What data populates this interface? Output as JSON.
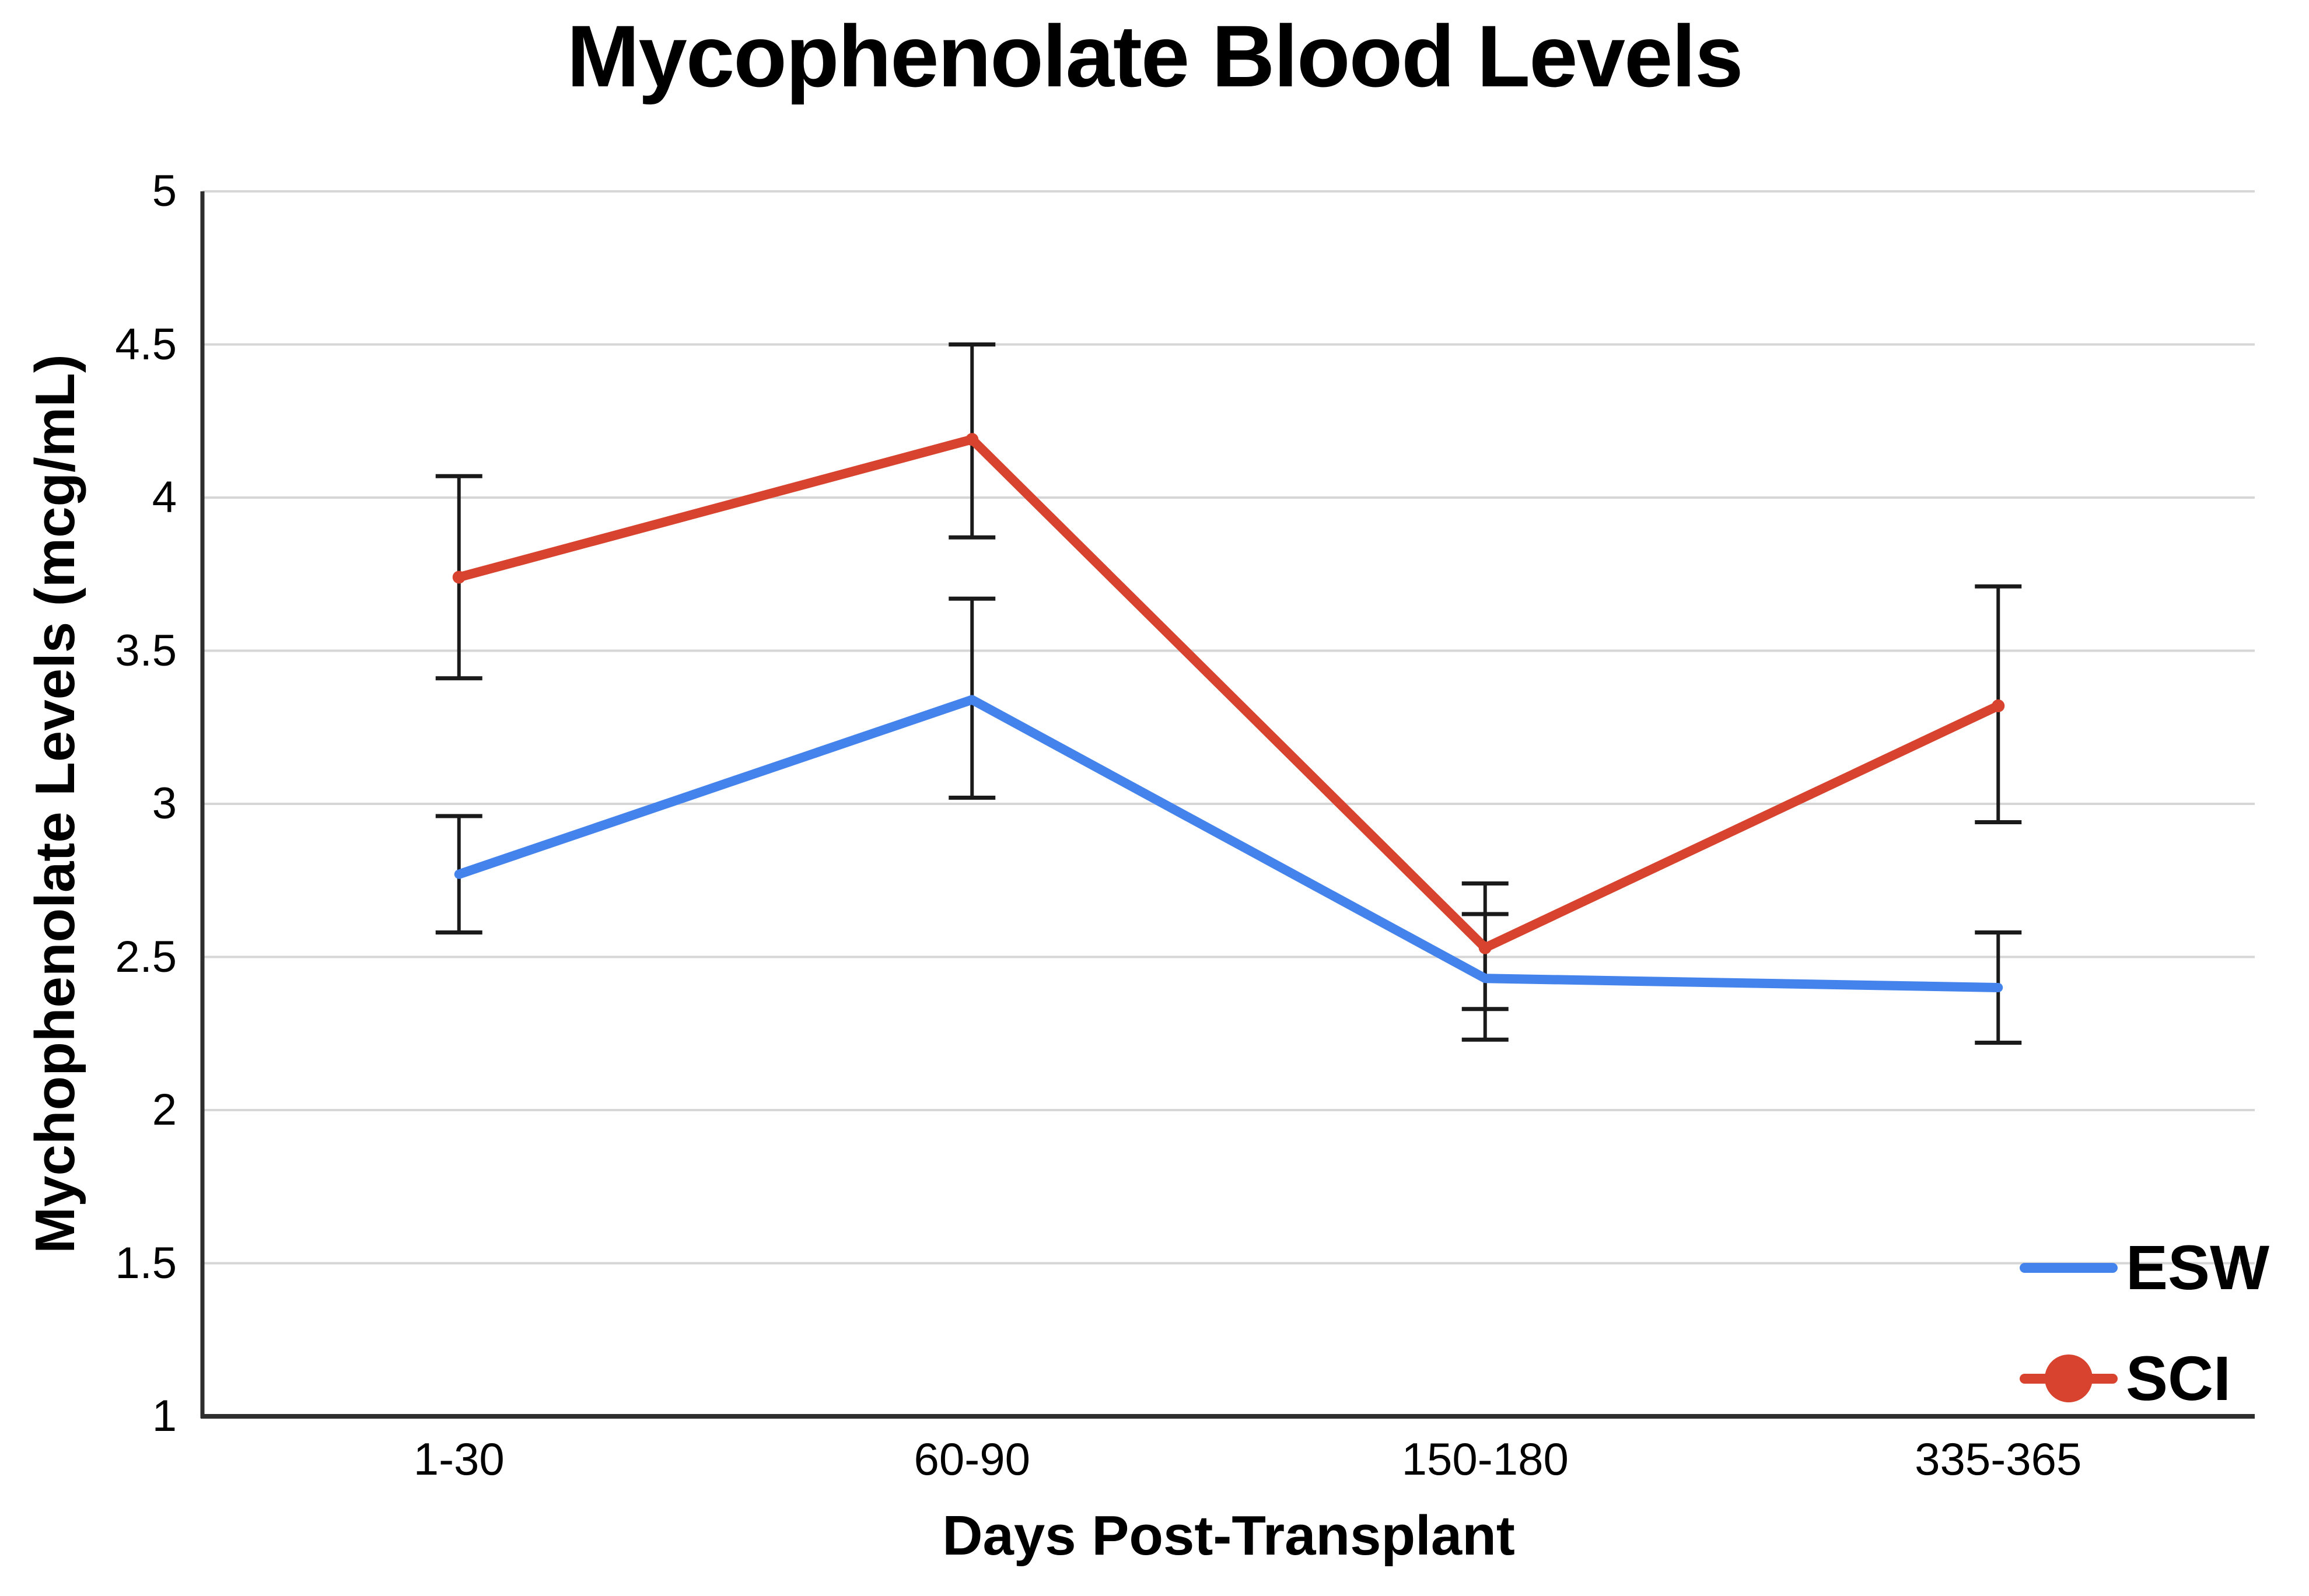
{
  "chart_data": {
    "type": "line",
    "title": "Mycophenolate Blood Levels",
    "xlabel": "Days Post-Transplant",
    "ylabel": "Mychophenolate Levels (mcg/mL)",
    "categories": [
      "1-30",
      "60-90",
      "150-180",
      "335-365"
    ],
    "ylim": [
      1,
      5
    ],
    "ytick_step": 0.5,
    "ytick_labels": [
      "1",
      "1.5",
      "2",
      "2.5",
      "3",
      "3.5",
      "4",
      "4.5",
      "5"
    ],
    "grid": true,
    "legend_position": "inside-bottom-right",
    "series": [
      {
        "name": "ESW",
        "color": "#4583EC",
        "marker": "none",
        "values": [
          2.77,
          3.34,
          2.43,
          2.4
        ],
        "error_low": [
          2.58,
          3.02,
          2.23,
          2.22
        ],
        "error_high": [
          2.96,
          3.67,
          2.64,
          2.58
        ]
      },
      {
        "name": "SCI",
        "color": "#D7432E",
        "marker": "circle",
        "values": [
          3.74,
          4.19,
          2.53,
          3.32
        ],
        "error_low": [
          3.41,
          3.87,
          2.33,
          2.94
        ],
        "error_high": [
          4.07,
          4.5,
          2.74,
          3.71
        ]
      }
    ],
    "error_bar_color": "#1a1a1a",
    "gridline_color": "#D6D6D6",
    "axis_color": "#2e2e2e",
    "background_color": "#ffffff"
  }
}
